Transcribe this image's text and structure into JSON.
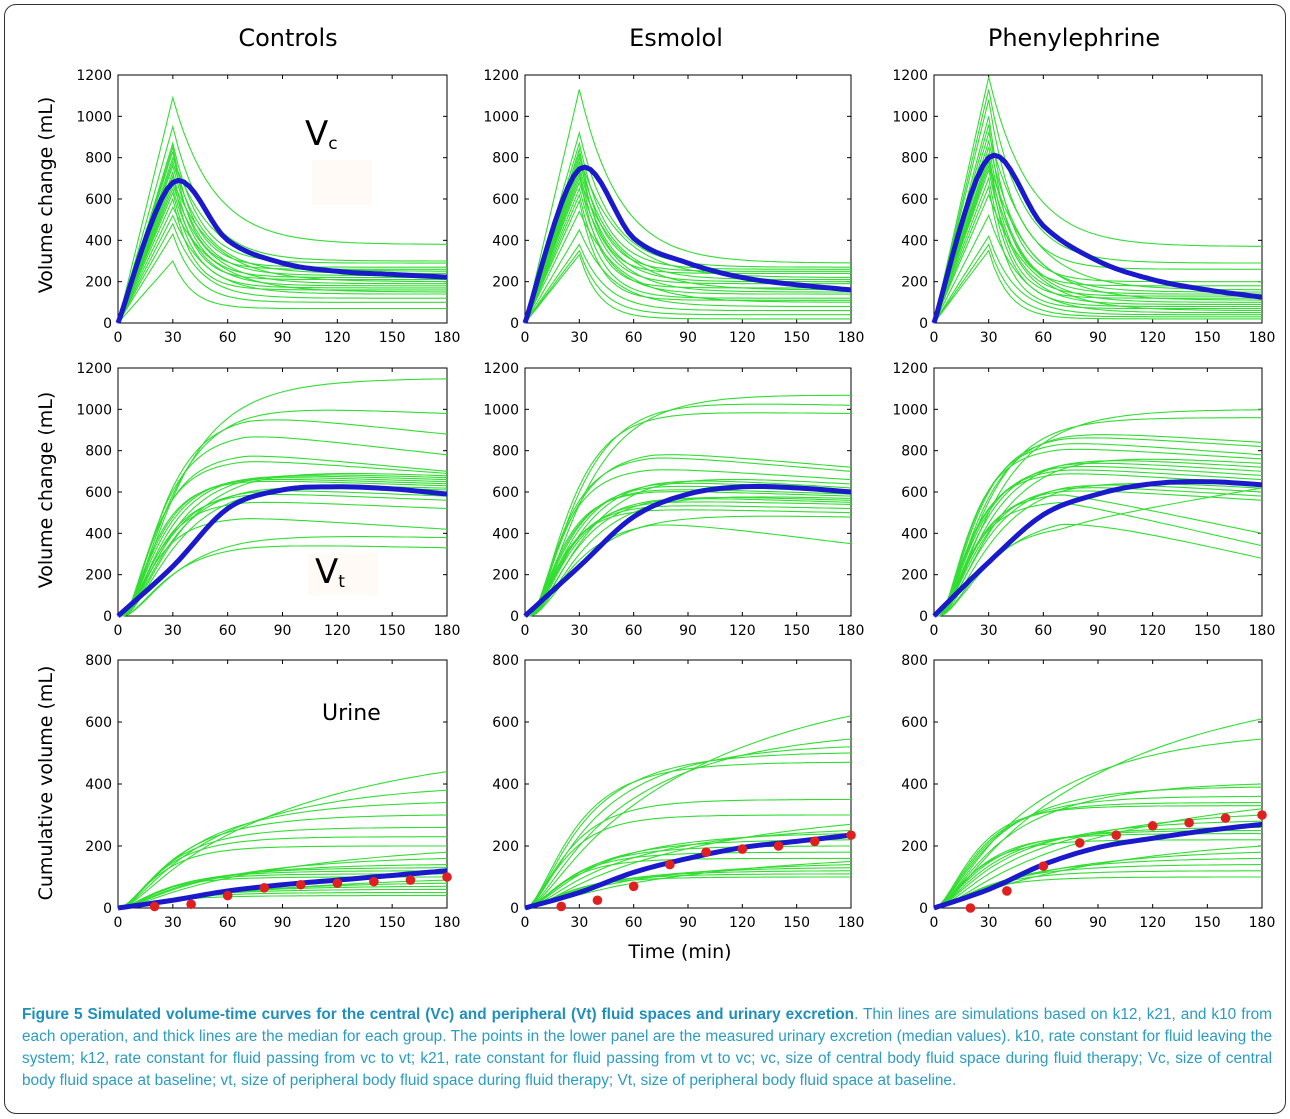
{
  "column_titles": [
    "Controls",
    "Esmolol",
    "Phenylephrine"
  ],
  "row_ylabels": [
    "Volume change  (mL)",
    "Volume change (mL)",
    "Cumulative volume (mL)"
  ],
  "xlabel": "Time (min)",
  "annotations": {
    "vc_letter": "V",
    "vc_sub": "c",
    "vt_letter": "V",
    "vt_sub": "t",
    "urine": "Urine"
  },
  "colors": {
    "simulation": "#33dd33",
    "median": "#1a1acc",
    "measured": "#e02020",
    "caption": "#2a9cc4"
  },
  "caption": {
    "title": "Figure 5 Simulated volume-time curves for the central (Vc) and peripheral (Vt) fluid spaces and urinary excretion",
    "body": ". Thin lines are simulations based on k12, k21, and k10 from each operation, and thick lines are the median for each group. The points in the lower panel are the measured urinary excretion (median values). k10, rate constant for fluid leaving the system; k12, rate constant for fluid passing from vc to vt; k21, rate constant for fluid passing from vt to vc; vc, size of central body fluid space during fluid therapy; Vc, size of central body fluid space at baseline; vt, size of peripheral body fluid space during fluid therapy; Vt, size of peripheral body fluid space at baseline."
  },
  "chart_data": [
    {
      "type": "line",
      "panel": "Controls - Vc",
      "x": [
        0,
        30,
        60,
        90,
        120,
        150,
        180
      ],
      "xlim": [
        0,
        180
      ],
      "ylim": [
        0,
        1200
      ],
      "xticks": [
        0,
        30,
        60,
        90,
        120,
        150,
        180
      ],
      "yticks": [
        0,
        200,
        400,
        600,
        800,
        1000,
        1200
      ],
      "median": [
        0,
        680,
        400,
        290,
        250,
        235,
        222
      ],
      "simulations": {
        "peaks": [
          1090,
          950,
          870,
          850,
          830,
          800,
          780,
          760,
          730,
          710,
          690,
          670,
          650,
          630,
          600,
          560,
          520,
          480,
          430,
          300
        ],
        "ends": [
          380,
          300,
          290,
          270,
          260,
          250,
          240,
          230,
          220,
          210,
          200,
          190,
          180,
          170,
          160,
          150,
          140,
          120,
          100,
          70
        ]
      }
    },
    {
      "type": "line",
      "panel": "Esmolol - Vc",
      "x": [
        0,
        30,
        60,
        90,
        120,
        150,
        180
      ],
      "xlim": [
        0,
        180
      ],
      "ylim": [
        0,
        1200
      ],
      "xticks": [
        0,
        30,
        60,
        90,
        120,
        150,
        180
      ],
      "yticks": [
        0,
        200,
        400,
        600,
        800,
        1000,
        1200
      ],
      "median": [
        0,
        745,
        410,
        290,
        220,
        185,
        160
      ],
      "simulations": {
        "peaks": [
          1130,
          920,
          870,
          840,
          820,
          800,
          780,
          760,
          740,
          720,
          700,
          680,
          650,
          620,
          590,
          540,
          450,
          380,
          350,
          330
        ],
        "ends": [
          290,
          270,
          260,
          250,
          240,
          220,
          210,
          200,
          190,
          170,
          160,
          150,
          140,
          120,
          110,
          100,
          80,
          60,
          40,
          20
        ]
      }
    },
    {
      "type": "line",
      "panel": "Phenylephrine - Vc",
      "x": [
        0,
        30,
        60,
        90,
        120,
        150,
        180
      ],
      "xlim": [
        0,
        180
      ],
      "ylim": [
        0,
        1200
      ],
      "xticks": [
        0,
        30,
        60,
        90,
        120,
        150,
        180
      ],
      "yticks": [
        0,
        200,
        400,
        600,
        800,
        1000,
        1200
      ],
      "median": [
        0,
        800,
        470,
        300,
        210,
        160,
        125
      ],
      "simulations": {
        "peaks": [
          1190,
          1130,
          1080,
          1000,
          960,
          920,
          880,
          850,
          820,
          800,
          780,
          760,
          740,
          700,
          660,
          620,
          520,
          420,
          380,
          350
        ],
        "ends": [
          370,
          290,
          260,
          200,
          180,
          160,
          150,
          140,
          130,
          120,
          110,
          100,
          90,
          80,
          70,
          60,
          50,
          40,
          30,
          20
        ]
      }
    },
    {
      "type": "line",
      "panel": "Controls - Vt",
      "x": [
        0,
        30,
        60,
        90,
        120,
        150,
        180
      ],
      "xlim": [
        0,
        180
      ],
      "ylim": [
        0,
        1200
      ],
      "xticks": [
        0,
        30,
        60,
        90,
        120,
        150,
        180
      ],
      "yticks": [
        0,
        200,
        400,
        600,
        800,
        1000,
        1200
      ],
      "median": [
        0,
        240,
        520,
        610,
        625,
        615,
        590
      ],
      "simulations": {
        "plateaus": [
          1145,
          1020,
          980,
          890,
          790,
          760,
          720,
          700,
          690,
          680,
          670,
          660,
          650,
          640,
          620,
          600,
          560,
          480,
          400,
          350
        ],
        "ends": [
          1150,
          980,
          880,
          780,
          700,
          690,
          680,
          670,
          660,
          650,
          640,
          630,
          620,
          610,
          580,
          560,
          520,
          420,
          380,
          330
        ]
      }
    },
    {
      "type": "line",
      "panel": "Esmolol - Vt",
      "x": [
        0,
        30,
        60,
        90,
        120,
        150,
        180
      ],
      "xlim": [
        0,
        180
      ],
      "ylim": [
        0,
        1200
      ],
      "xticks": [
        0,
        30,
        60,
        90,
        120,
        150,
        180
      ],
      "yticks": [
        0,
        200,
        400,
        600,
        800,
        1000,
        1200
      ],
      "median": [
        0,
        240,
        480,
        590,
        625,
        620,
        600
      ],
      "simulations": {
        "plateaus": [
          1080,
          1040,
          990,
          800,
          780,
          720,
          700,
          680,
          660,
          640,
          620,
          610,
          600,
          590,
          580,
          560,
          540,
          520,
          500,
          470
        ],
        "ends": [
          1070,
          1020,
          980,
          720,
          700,
          660,
          640,
          620,
          610,
          600,
          590,
          580,
          570,
          560,
          550,
          540,
          520,
          500,
          480,
          350
        ]
      }
    },
    {
      "type": "line",
      "panel": "Phenylephrine - Vt",
      "x": [
        0,
        30,
        60,
        90,
        120,
        150,
        180
      ],
      "xlim": [
        0,
        180
      ],
      "ylim": [
        0,
        1200
      ],
      "xticks": [
        0,
        30,
        60,
        90,
        120,
        150,
        180
      ],
      "yticks": [
        0,
        200,
        400,
        600,
        800,
        1000,
        1200
      ],
      "median": [
        0,
        260,
        490,
        590,
        640,
        650,
        635
      ],
      "simulations": {
        "plateaus": [
          1000,
          960,
          900,
          880,
          850,
          820,
          800,
          780,
          760,
          740,
          720,
          700,
          680,
          660,
          640,
          620,
          600,
          560,
          500,
          450
        ],
        "ends": [
          1000,
          960,
          840,
          820,
          780,
          760,
          740,
          720,
          700,
          680,
          660,
          640,
          620,
          600,
          580,
          560,
          400,
          340,
          280,
          620
        ]
      }
    },
    {
      "type": "line",
      "panel": "Controls - Urine",
      "x": [
        0,
        30,
        60,
        90,
        120,
        150,
        180
      ],
      "xlim": [
        0,
        180
      ],
      "ylim": [
        0,
        800
      ],
      "xticks": [
        0,
        30,
        60,
        90,
        120,
        150,
        180
      ],
      "yticks": [
        0,
        200,
        400,
        600,
        800
      ],
      "median": [
        0,
        25,
        55,
        75,
        90,
        105,
        120
      ],
      "simulations": {
        "ends": [
          440,
          380,
          340,
          300,
          260,
          230,
          200,
          180,
          160,
          140,
          130,
          120,
          110,
          100,
          90,
          80,
          70,
          60,
          50,
          40
        ]
      },
      "measured": {
        "x": [
          20,
          40,
          60,
          80,
          100,
          120,
          140,
          160,
          180
        ],
        "y": [
          5,
          12,
          40,
          65,
          75,
          80,
          85,
          90,
          100
        ]
      }
    },
    {
      "type": "line",
      "panel": "Esmolol - Urine",
      "x": [
        0,
        30,
        60,
        90,
        120,
        150,
        180
      ],
      "xlim": [
        0,
        180
      ],
      "ylim": [
        0,
        800
      ],
      "xticks": [
        0,
        30,
        60,
        90,
        120,
        150,
        180
      ],
      "yticks": [
        0,
        200,
        400,
        600,
        800
      ],
      "median": [
        0,
        50,
        115,
        160,
        195,
        215,
        235
      ],
      "simulations": {
        "ends": [
          620,
          545,
          520,
          500,
          470,
          350,
          300,
          270,
          250,
          240,
          220,
          200,
          180,
          160,
          150,
          140,
          130,
          120,
          110,
          100
        ]
      },
      "measured": {
        "x": [
          20,
          40,
          60,
          80,
          100,
          120,
          140,
          160,
          180
        ],
        "y": [
          5,
          25,
          70,
          140,
          180,
          190,
          200,
          215,
          235
        ]
      }
    },
    {
      "type": "line",
      "panel": "Phenylephrine - Urine",
      "x": [
        0,
        30,
        60,
        90,
        120,
        150,
        180
      ],
      "xlim": [
        0,
        180
      ],
      "ylim": [
        0,
        800
      ],
      "xticks": [
        0,
        30,
        60,
        90,
        120,
        150,
        180
      ],
      "yticks": [
        0,
        200,
        400,
        600,
        800
      ],
      "median": [
        0,
        60,
        140,
        195,
        225,
        250,
        270
      ],
      "simulations": {
        "ends": [
          610,
          545,
          400,
          390,
          360,
          340,
          330,
          320,
          300,
          280,
          260,
          250,
          240,
          220,
          200,
          180,
          160,
          140,
          120,
          100
        ]
      },
      "measured": {
        "x": [
          20,
          40,
          60,
          80,
          100,
          120,
          140,
          160,
          180
        ],
        "y": [
          0,
          55,
          135,
          210,
          235,
          265,
          275,
          290,
          300
        ]
      }
    }
  ]
}
